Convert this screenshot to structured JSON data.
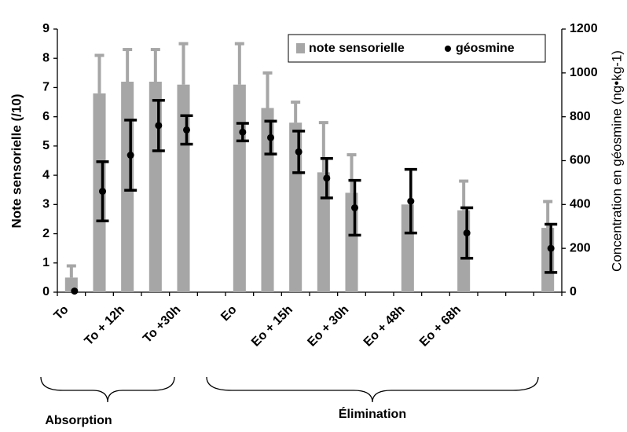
{
  "chart_data": {
    "type": "bar",
    "y_label": "Note sensorielle (/10)",
    "y2_label": "Concentration en géosmine (ng•kg-1)",
    "categories": [
      "To",
      null,
      "To + 12h",
      null,
      "To +30h",
      null,
      "Eo",
      null,
      "Eo + 15h",
      null,
      "Eo + 30h",
      null,
      "Eo + 48h",
      null,
      "Eo + 68h",
      null,
      null,
      null
    ],
    "series": [
      {
        "name": "note sensorielle",
        "color": "#a6a6a6",
        "axis": "y",
        "values": [
          0.5,
          6.8,
          7.2,
          7.2,
          7.1,
          null,
          7.1,
          6.3,
          5.8,
          4.1,
          3.4,
          null,
          3.0,
          null,
          2.8,
          null,
          null,
          2.2
        ],
        "errors": [
          0.4,
          1.3,
          1.1,
          1.1,
          1.4,
          null,
          1.4,
          1.2,
          0.7,
          1.7,
          1.3,
          null,
          null,
          null,
          1.0,
          null,
          null,
          0.9
        ]
      },
      {
        "name": "géosmine",
        "color": "#000000",
        "axis": "y2",
        "values": [
          5,
          460,
          625,
          760,
          740,
          null,
          730,
          705,
          640,
          520,
          385,
          null,
          415,
          null,
          270,
          null,
          null,
          200
        ],
        "errors": [
          null,
          135,
          160,
          115,
          65,
          null,
          40,
          75,
          95,
          90,
          125,
          null,
          145,
          null,
          115,
          null,
          null,
          110
        ]
      }
    ],
    "ylim": [
      0,
      9
    ],
    "yticks": [
      0,
      1,
      2,
      3,
      4,
      5,
      6,
      7,
      8,
      9
    ],
    "y2lim": [
      0,
      1200
    ],
    "y2ticks": [
      0,
      200,
      400,
      600,
      800,
      1000,
      1200
    ],
    "legend": "top-right",
    "groups": [
      "Absorption",
      "Élimination"
    ]
  }
}
